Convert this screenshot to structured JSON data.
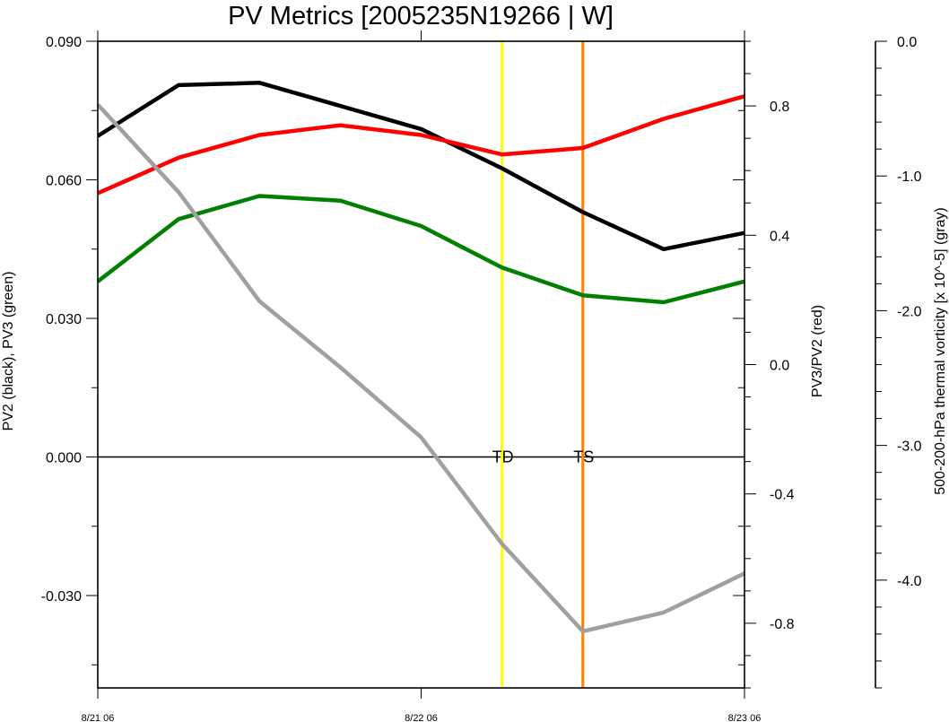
{
  "chart_data": {
    "type": "line",
    "title": "PV Metrics [2005235N19266 | W]",
    "x_tick_labels": [
      "8/21 06",
      "8/22 06",
      "8/23 06"
    ],
    "x": [
      0,
      1,
      2,
      3,
      4,
      5,
      6,
      7,
      8
    ],
    "grid": false,
    "axes": {
      "left": {
        "label": "PV2 (black), PV3 (green)",
        "ylim": [
          -0.05,
          0.09
        ],
        "tick_labels": [
          "0.090",
          "0.060",
          "0.030",
          "0.000",
          "-0.030"
        ]
      },
      "right": {
        "label": "PV3/PV2 (red)",
        "ylim": [
          -1.0,
          1.0
        ],
        "tick_labels": [
          "0.8",
          "0.4",
          "0.0",
          "-0.4",
          "-0.8"
        ]
      },
      "far_right": {
        "label": "500-200-hPa thermal vorticity [x 10^-5] (gray)",
        "ylim": [
          -4.8,
          0.0
        ],
        "tick_labels": [
          "0.0",
          "-1.0",
          "-2.0",
          "-3.0",
          "-4.0"
        ]
      }
    },
    "series": [
      {
        "color": "#000000",
        "axis": "left",
        "values": [
          0.0695,
          0.0805,
          0.081,
          0.076,
          0.071,
          0.0625,
          0.053,
          0.045,
          0.0485
        ]
      },
      {
        "color": "#008000",
        "axis": "left",
        "values": [
          0.038,
          0.0515,
          0.0565,
          0.0555,
          0.05,
          0.041,
          0.035,
          0.0335,
          0.038
        ]
      },
      {
        "color": "#ff0000",
        "axis": "right",
        "values": [
          0.53,
          0.64,
          0.71,
          0.74,
          0.71,
          0.65,
          0.67,
          0.76,
          0.83
        ]
      },
      {
        "color": "#a0a0a0",
        "axis": "far_right",
        "values": [
          -0.47,
          -1.12,
          -1.93,
          -2.42,
          -2.94,
          -3.73,
          -4.38,
          -4.24,
          -3.95
        ]
      }
    ],
    "markers": [
      {
        "label": "TD",
        "x": 5,
        "color": "#ffff00"
      },
      {
        "label": "TS",
        "x": 6,
        "color": "#ff8000"
      }
    ],
    "zero_line_value": 0
  }
}
